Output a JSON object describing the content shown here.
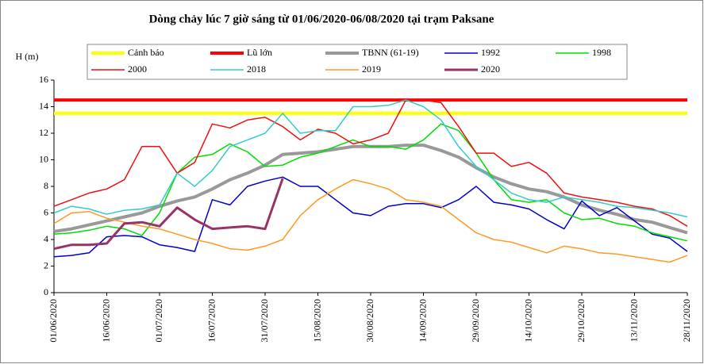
{
  "chart_data": {
    "type": "line",
    "title": "Dòng chảy lúc 7 giờ sáng từ 01/06/2020-06/08/2020 tại trạm Paksane",
    "y_label": "H (m)",
    "categories": [
      "01/06/2020",
      null,
      null,
      "16/06/2020",
      null,
      null,
      "01/07/2020",
      null,
      null,
      "16/07/2020",
      null,
      null,
      "31/07/2020",
      null,
      null,
      "15/08/2020",
      null,
      null,
      "30/08/2020",
      null,
      null,
      "14/09/2020",
      null,
      null,
      "29/09/2020",
      null,
      null,
      "14/10/2020",
      null,
      null,
      "29/10/2020",
      null,
      null,
      "13/11/2020",
      null,
      null,
      "28/11/2020"
    ],
    "ylim": [
      0,
      16
    ],
    "yticks": [
      0,
      2,
      4,
      6,
      8,
      10,
      12,
      14,
      16
    ],
    "series": [
      {
        "name": "Cảnh báo",
        "color": "#ffff00",
        "values": [
          13.5,
          13.5,
          13.5,
          13.5,
          13.5,
          13.5,
          13.5,
          13.5,
          13.5,
          13.5,
          13.5,
          13.5,
          13.5,
          13.5,
          13.5,
          13.5,
          13.5,
          13.5,
          13.5,
          13.5,
          13.5,
          13.5,
          13.5,
          13.5,
          13.5,
          13.5,
          13.5,
          13.5,
          13.5,
          13.5,
          13.5,
          13.5,
          13.5,
          13.5,
          13.5,
          13.5,
          13.5
        ]
      },
      {
        "name": "Lũ lớn",
        "color": "#ff0000",
        "values": [
          14.5,
          14.5,
          14.5,
          14.5,
          14.5,
          14.5,
          14.5,
          14.5,
          14.5,
          14.5,
          14.5,
          14.5,
          14.5,
          14.5,
          14.5,
          14.5,
          14.5,
          14.5,
          14.5,
          14.5,
          14.5,
          14.5,
          14.5,
          14.5,
          14.5,
          14.5,
          14.5,
          14.5,
          14.5,
          14.5,
          14.5,
          14.5,
          14.5,
          14.5,
          14.5,
          14.5,
          14.5
        ]
      },
      {
        "name": "TBNN (61-19)",
        "color": "#999999",
        "values": [
          4.6,
          4.8,
          5.1,
          5.4,
          5.7,
          6.0,
          6.5,
          6.9,
          7.2,
          7.8,
          8.5,
          9.0,
          9.6,
          10.4,
          10.5,
          10.6,
          10.8,
          11.0,
          11.0,
          11.0,
          11.1,
          11.1,
          10.7,
          10.2,
          9.4,
          8.7,
          8.2,
          7.8,
          7.6,
          7.2,
          6.6,
          6.2,
          5.9,
          5.5,
          5.3,
          4.9,
          4.5
        ]
      },
      {
        "name": "1992",
        "color": "#0000cc",
        "values": [
          2.7,
          2.8,
          3.0,
          4.2,
          4.3,
          4.2,
          3.6,
          3.4,
          3.1,
          7.0,
          6.6,
          8.0,
          8.4,
          8.7,
          8.0,
          8.0,
          7.0,
          6.0,
          5.8,
          6.5,
          6.7,
          6.7,
          6.4,
          7.0,
          8.0,
          6.8,
          6.6,
          6.3,
          5.5,
          4.8,
          6.9,
          5.8,
          6.4,
          5.4,
          4.4,
          4.1,
          3.1
        ]
      },
      {
        "name": "1998",
        "color": "#00dd00",
        "values": [
          4.4,
          4.5,
          4.7,
          5.0,
          4.8,
          4.3,
          6.0,
          9.0,
          10.2,
          10.4,
          11.2,
          10.6,
          9.5,
          9.6,
          10.2,
          10.5,
          11.0,
          11.5,
          11.0,
          11.0,
          10.8,
          11.5,
          12.7,
          12.2,
          10.5,
          8.5,
          7.0,
          6.8,
          7.0,
          6.0,
          5.5,
          5.6,
          5.2,
          5.0,
          4.5,
          4.2,
          3.9
        ]
      },
      {
        "name": "2000",
        "color": "#ee1111",
        "values": [
          6.5,
          7.0,
          7.5,
          7.8,
          8.5,
          11.0,
          11.0,
          9.0,
          9.8,
          12.7,
          12.4,
          13.0,
          13.2,
          12.5,
          11.5,
          12.3,
          12.0,
          11.2,
          11.5,
          12.0,
          14.5,
          14.5,
          14.3,
          12.5,
          10.5,
          10.5,
          9.5,
          9.8,
          9.0,
          7.5,
          7.2,
          7.0,
          6.8,
          6.5,
          6.3,
          5.8,
          5.0
        ]
      },
      {
        "name": "2018",
        "color": "#33cccc",
        "values": [
          6.0,
          6.5,
          6.3,
          5.9,
          6.2,
          6.3,
          6.6,
          9.0,
          8.0,
          9.2,
          11.0,
          11.5,
          12.0,
          13.5,
          12.0,
          12.2,
          12.2,
          14.0,
          14.0,
          14.1,
          14.5,
          14.0,
          13.0,
          11.0,
          9.5,
          8.5,
          7.5,
          7.0,
          6.8,
          7.2,
          7.0,
          6.8,
          6.5,
          6.4,
          6.2,
          6.0,
          5.7
        ]
      },
      {
        "name": "2019",
        "color": "#ff9922",
        "values": [
          5.2,
          6.0,
          6.1,
          5.6,
          5.3,
          5.0,
          4.8,
          4.4,
          4.0,
          3.7,
          3.3,
          3.2,
          3.5,
          4.0,
          5.8,
          7.0,
          7.8,
          8.5,
          8.2,
          7.8,
          7.0,
          6.8,
          6.5,
          5.5,
          4.5,
          4.0,
          3.8,
          3.4,
          3.0,
          3.5,
          3.3,
          3.0,
          2.9,
          2.7,
          2.5,
          2.3,
          2.8
        ]
      },
      {
        "name": "2020",
        "color": "#993366",
        "values": [
          3.3,
          3.6,
          3.6,
          3.7,
          5.2,
          5.3,
          5.0,
          6.4,
          5.5,
          4.8,
          4.9,
          5.0,
          4.8,
          8.6,
          null,
          null,
          null,
          null,
          null,
          null,
          null,
          null,
          null,
          null,
          null,
          null,
          null,
          null,
          null,
          null,
          null,
          null,
          null,
          null,
          null,
          null,
          null
        ]
      }
    ]
  }
}
